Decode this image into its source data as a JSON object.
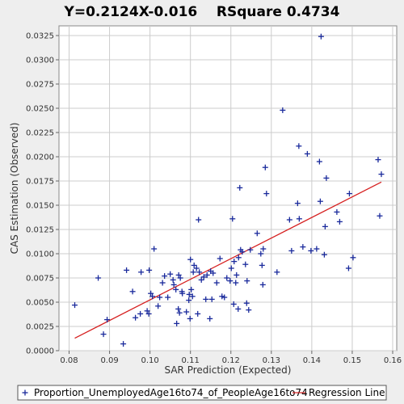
{
  "chart_data": {
    "type": "scatter",
    "title": "Y=0.2124X-0.016    RSquare 0.4734",
    "xlabel": "SAR Prediction (Expected)",
    "ylabel": "CAS Estimation (Observed)",
    "xlim": [
      0.0775,
      0.161
    ],
    "ylim": [
      0.0,
      0.0335
    ],
    "x_ticks": [
      "0.08",
      "0.09",
      "0.10",
      "0.11",
      "0.12",
      "0.13",
      "0.14",
      "0.15",
      "0.16"
    ],
    "y_ticks": [
      "0.0000",
      "0.0025",
      "0.0050",
      "0.0075",
      "0.0100",
      "0.0125",
      "0.0150",
      "0.0175",
      "0.0200",
      "0.0225",
      "0.0250",
      "0.0275",
      "0.0300",
      "0.0325"
    ],
    "grid": true,
    "legend_position": "bottom",
    "series": [
      {
        "name": "Proportion_UnemployedAge16to74_of_PeopleAge16to74",
        "color": "#1a2a9c",
        "marker": "plus",
        "points": [
          [
            0.0814,
            0.0047
          ],
          [
            0.0872,
            0.0075
          ],
          [
            0.0885,
            0.0017
          ],
          [
            0.0894,
            0.0032
          ],
          [
            0.0934,
            0.0007
          ],
          [
            0.0942,
            0.0083
          ],
          [
            0.0957,
            0.0061
          ],
          [
            0.0964,
            0.0034
          ],
          [
            0.0976,
            0.0038
          ],
          [
            0.0978,
            0.0081
          ],
          [
            0.0993,
            0.0041
          ],
          [
            0.0997,
            0.0038
          ],
          [
            0.0998,
            0.0083
          ],
          [
            0.1002,
            0.0059
          ],
          [
            0.1006,
            0.0056
          ],
          [
            0.101,
            0.0105
          ],
          [
            0.102,
            0.0046
          ],
          [
            0.1024,
            0.0055
          ],
          [
            0.1031,
            0.007
          ],
          [
            0.1036,
            0.0077
          ],
          [
            0.1044,
            0.0055
          ],
          [
            0.105,
            0.0079
          ],
          [
            0.1057,
            0.0073
          ],
          [
            0.1059,
            0.0068
          ],
          [
            0.1064,
            0.0063
          ],
          [
            0.1066,
            0.0028
          ],
          [
            0.107,
            0.0043
          ],
          [
            0.1071,
            0.0078
          ],
          [
            0.1073,
            0.0039
          ],
          [
            0.1075,
            0.0075
          ],
          [
            0.1079,
            0.0061
          ],
          [
            0.108,
            0.0059
          ],
          [
            0.109,
            0.004
          ],
          [
            0.1096,
            0.0052
          ],
          [
            0.1097,
            0.0058
          ],
          [
            0.1099,
            0.0033
          ],
          [
            0.11,
            0.0094
          ],
          [
            0.1102,
            0.0063
          ],
          [
            0.1105,
            0.0056
          ],
          [
            0.1107,
            0.0081
          ],
          [
            0.1109,
            0.0088
          ],
          [
            0.1115,
            0.0085
          ],
          [
            0.1118,
            0.0038
          ],
          [
            0.112,
            0.0135
          ],
          [
            0.1122,
            0.0081
          ],
          [
            0.1127,
            0.0073
          ],
          [
            0.1133,
            0.0076
          ],
          [
            0.1138,
            0.0053
          ],
          [
            0.1141,
            0.0078
          ],
          [
            0.1148,
            0.0033
          ],
          [
            0.115,
            0.0082
          ],
          [
            0.1153,
            0.0053
          ],
          [
            0.1156,
            0.008
          ],
          [
            0.1165,
            0.007
          ],
          [
            0.1173,
            0.0095
          ],
          [
            0.1178,
            0.0056
          ],
          [
            0.1184,
            0.0055
          ],
          [
            0.119,
            0.0075
          ],
          [
            0.1198,
            0.0072
          ],
          [
            0.1201,
            0.0085
          ],
          [
            0.1204,
            0.0136
          ],
          [
            0.1207,
            0.0048
          ],
          [
            0.1208,
            0.0092
          ],
          [
            0.1212,
            0.007
          ],
          [
            0.1214,
            0.0078
          ],
          [
            0.1218,
            0.0043
          ],
          [
            0.1219,
            0.0096
          ],
          [
            0.1222,
            0.0168
          ],
          [
            0.1224,
            0.0104
          ],
          [
            0.1228,
            0.0102
          ],
          [
            0.1236,
            0.0089
          ],
          [
            0.1239,
            0.0049
          ],
          [
            0.124,
            0.0072
          ],
          [
            0.1244,
            0.0042
          ],
          [
            0.1248,
            0.0104
          ],
          [
            0.1265,
            0.0121
          ],
          [
            0.1274,
            0.01
          ],
          [
            0.1277,
            0.0088
          ],
          [
            0.1279,
            0.0068
          ],
          [
            0.128,
            0.0105
          ],
          [
            0.1285,
            0.0189
          ],
          [
            0.1288,
            0.0162
          ],
          [
            0.1314,
            0.0081
          ],
          [
            0.1328,
            0.0248
          ],
          [
            0.1345,
            0.0135
          ],
          [
            0.135,
            0.0103
          ],
          [
            0.1365,
            0.0152
          ],
          [
            0.1368,
            0.0211
          ],
          [
            0.1369,
            0.0136
          ],
          [
            0.1378,
            0.0107
          ],
          [
            0.1389,
            0.0203
          ],
          [
            0.1398,
            0.0103
          ],
          [
            0.1412,
            0.0105
          ],
          [
            0.1419,
            0.0195
          ],
          [
            0.1421,
            0.0154
          ],
          [
            0.1423,
            0.0324
          ],
          [
            0.1431,
            0.0099
          ],
          [
            0.1433,
            0.0128
          ],
          [
            0.1436,
            0.0178
          ],
          [
            0.1462,
            0.0143
          ],
          [
            0.1469,
            0.0133
          ],
          [
            0.1491,
            0.0085
          ],
          [
            0.1493,
            0.0162
          ],
          [
            0.1502,
            0.0096
          ],
          [
            0.1564,
            0.0197
          ],
          [
            0.1568,
            0.0139
          ],
          [
            0.1572,
            0.0182
          ]
        ]
      }
    ],
    "regression_line": {
      "name": "Regression Line",
      "color": "#d62020",
      "slope": 0.2124,
      "intercept": -0.016,
      "x_range": [
        0.0814,
        0.1572
      ]
    }
  }
}
